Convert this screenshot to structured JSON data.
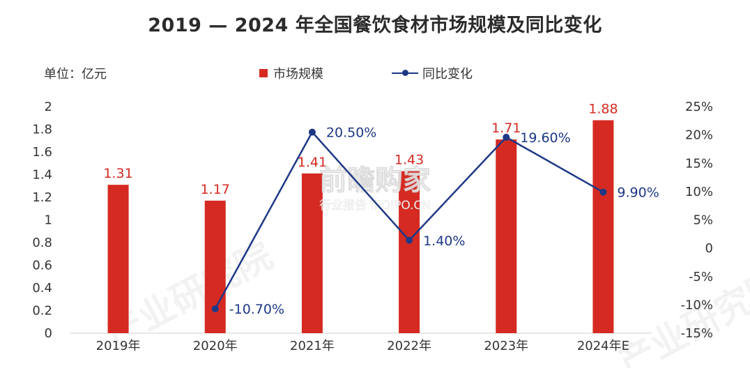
{
  "title": "2019 — 2024 年全国餐饮食材市场规模及同比变化",
  "unit_label": "单位：亿元",
  "legend": {
    "bar_label": "市场规模",
    "line_label": "同比变化"
  },
  "watermark": {
    "brand": "产业研究院",
    "main": "前瞻购家",
    "sub": "行业报告 IPOIPO.CN"
  },
  "colors": {
    "bar": "#d52a22",
    "line": "#1e3886",
    "bar_label": "#d52a22",
    "line_label": "#1e3886"
  },
  "chart_data": {
    "type": "bar",
    "categories": [
      "2019年",
      "2020年",
      "2021年",
      "2022年",
      "2023年",
      "2024年E"
    ],
    "series": [
      {
        "name": "市场规模",
        "type": "bar",
        "axis": "left",
        "values": [
          1.31,
          1.17,
          1.41,
          1.43,
          1.71,
          1.88
        ],
        "labels": [
          "1.31",
          "1.17",
          "1.41",
          "1.43",
          "1.71",
          "1.88"
        ]
      },
      {
        "name": "同比变化",
        "type": "line",
        "axis": "right",
        "values": [
          null,
          -10.7,
          20.5,
          1.4,
          19.6,
          9.9
        ],
        "labels": [
          "",
          "-10.70%",
          "20.50%",
          "1.40%",
          "19.60%",
          "9.90%"
        ]
      }
    ],
    "y_left": {
      "min": 0,
      "max": 2,
      "ticks": [
        "0",
        "0.2",
        "0.4",
        "0.6",
        "0.8",
        "1",
        "1.2",
        "1.4",
        "1.6",
        "1.8",
        "2"
      ]
    },
    "y_right": {
      "min": -15,
      "max": 25,
      "ticks": [
        "-15%",
        "-10%",
        "-5%",
        "0",
        "5%",
        "10%",
        "15%",
        "20%",
        "25%"
      ]
    },
    "grid": false,
    "legend_position": "top-center"
  }
}
